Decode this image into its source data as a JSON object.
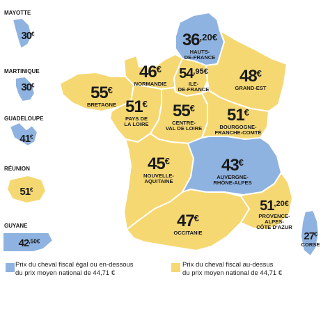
{
  "colors": {
    "below_or_equal": "#8fb3e0",
    "above": "#f6d873",
    "border": "#ffffff",
    "text": "#1a1a1a"
  },
  "regions": [
    {
      "id": "hauts-de-france",
      "price": "36",
      "cents": ",20€",
      "name": "HAUTS-\nDE-FRANCE",
      "category": "below_or_equal"
    },
    {
      "id": "normandie",
      "price": "46",
      "cents": "€",
      "name": "NORMANDIE",
      "category": "above"
    },
    {
      "id": "ile-de-france",
      "price": "54",
      "cents": ",95€",
      "name": "ILE-\nDE-FRANCE",
      "category": "above"
    },
    {
      "id": "grand-est",
      "price": "48",
      "cents": "€",
      "name": "GRAND-EST",
      "category": "above"
    },
    {
      "id": "bretagne",
      "price": "55",
      "cents": "€",
      "name": "BRETAGNE",
      "category": "above"
    },
    {
      "id": "pays-de-la-loire",
      "price": "51",
      "cents": "€",
      "name": "PAYS DE\nLA LOIRE",
      "category": "above"
    },
    {
      "id": "centre-val-de-loire",
      "price": "55",
      "cents": "€",
      "name": "CENTRE-\nVAL DE LOIRE",
      "category": "above"
    },
    {
      "id": "bourgogne-franche-comte",
      "price": "51",
      "cents": "€",
      "name": "BOURGOGNE-\nFRANCHE-COMTÉ",
      "category": "above"
    },
    {
      "id": "nouvelle-aquitaine",
      "price": "45",
      "cents": "€",
      "name": "NOUVELLE-\nAQUITAINE",
      "category": "above"
    },
    {
      "id": "auvergne-rhone-alpes",
      "price": "43",
      "cents": "€",
      "name": "AUVERGNE-\nRHÔNE-ALPES",
      "category": "below_or_equal"
    },
    {
      "id": "occitanie",
      "price": "47",
      "cents": "€",
      "name": "OCCITANIE",
      "category": "above"
    },
    {
      "id": "provence-alpes-cote-dazur",
      "price": "51",
      "cents": ",20€",
      "name": "PROVENCE-\nALPES-\nCÔTE D'AZUR",
      "category": "above"
    },
    {
      "id": "corse",
      "price": "27",
      "cents": "€",
      "name": "CORSE",
      "category": "below_or_equal"
    }
  ],
  "overseas": [
    {
      "id": "mayotte",
      "title": "MAYOTTE",
      "price": "30",
      "cents": "€",
      "category": "below_or_equal"
    },
    {
      "id": "martinique",
      "title": "MARTINIQUE",
      "price": "30",
      "cents": "€",
      "category": "below_or_equal"
    },
    {
      "id": "guadeloupe",
      "title": "GUADELOUPE",
      "price": "41",
      "cents": "€",
      "category": "below_or_equal"
    },
    {
      "id": "reunion",
      "title": "RÉUNION",
      "price": "51",
      "cents": "€",
      "category": "above"
    },
    {
      "id": "guyane",
      "title": "GUYANE",
      "price": "42",
      "cents": ",50€",
      "category": "below_or_equal"
    }
  ],
  "legend": [
    {
      "category": "below_or_equal",
      "text": "Prix du cheval fiscal égal ou en-dessous\ndu prix moyen national de 44,71 €"
    },
    {
      "category": "above",
      "text": "Prix du cheval fiscal au-dessus\ndu prix moyen national de 44,71 €"
    }
  ]
}
